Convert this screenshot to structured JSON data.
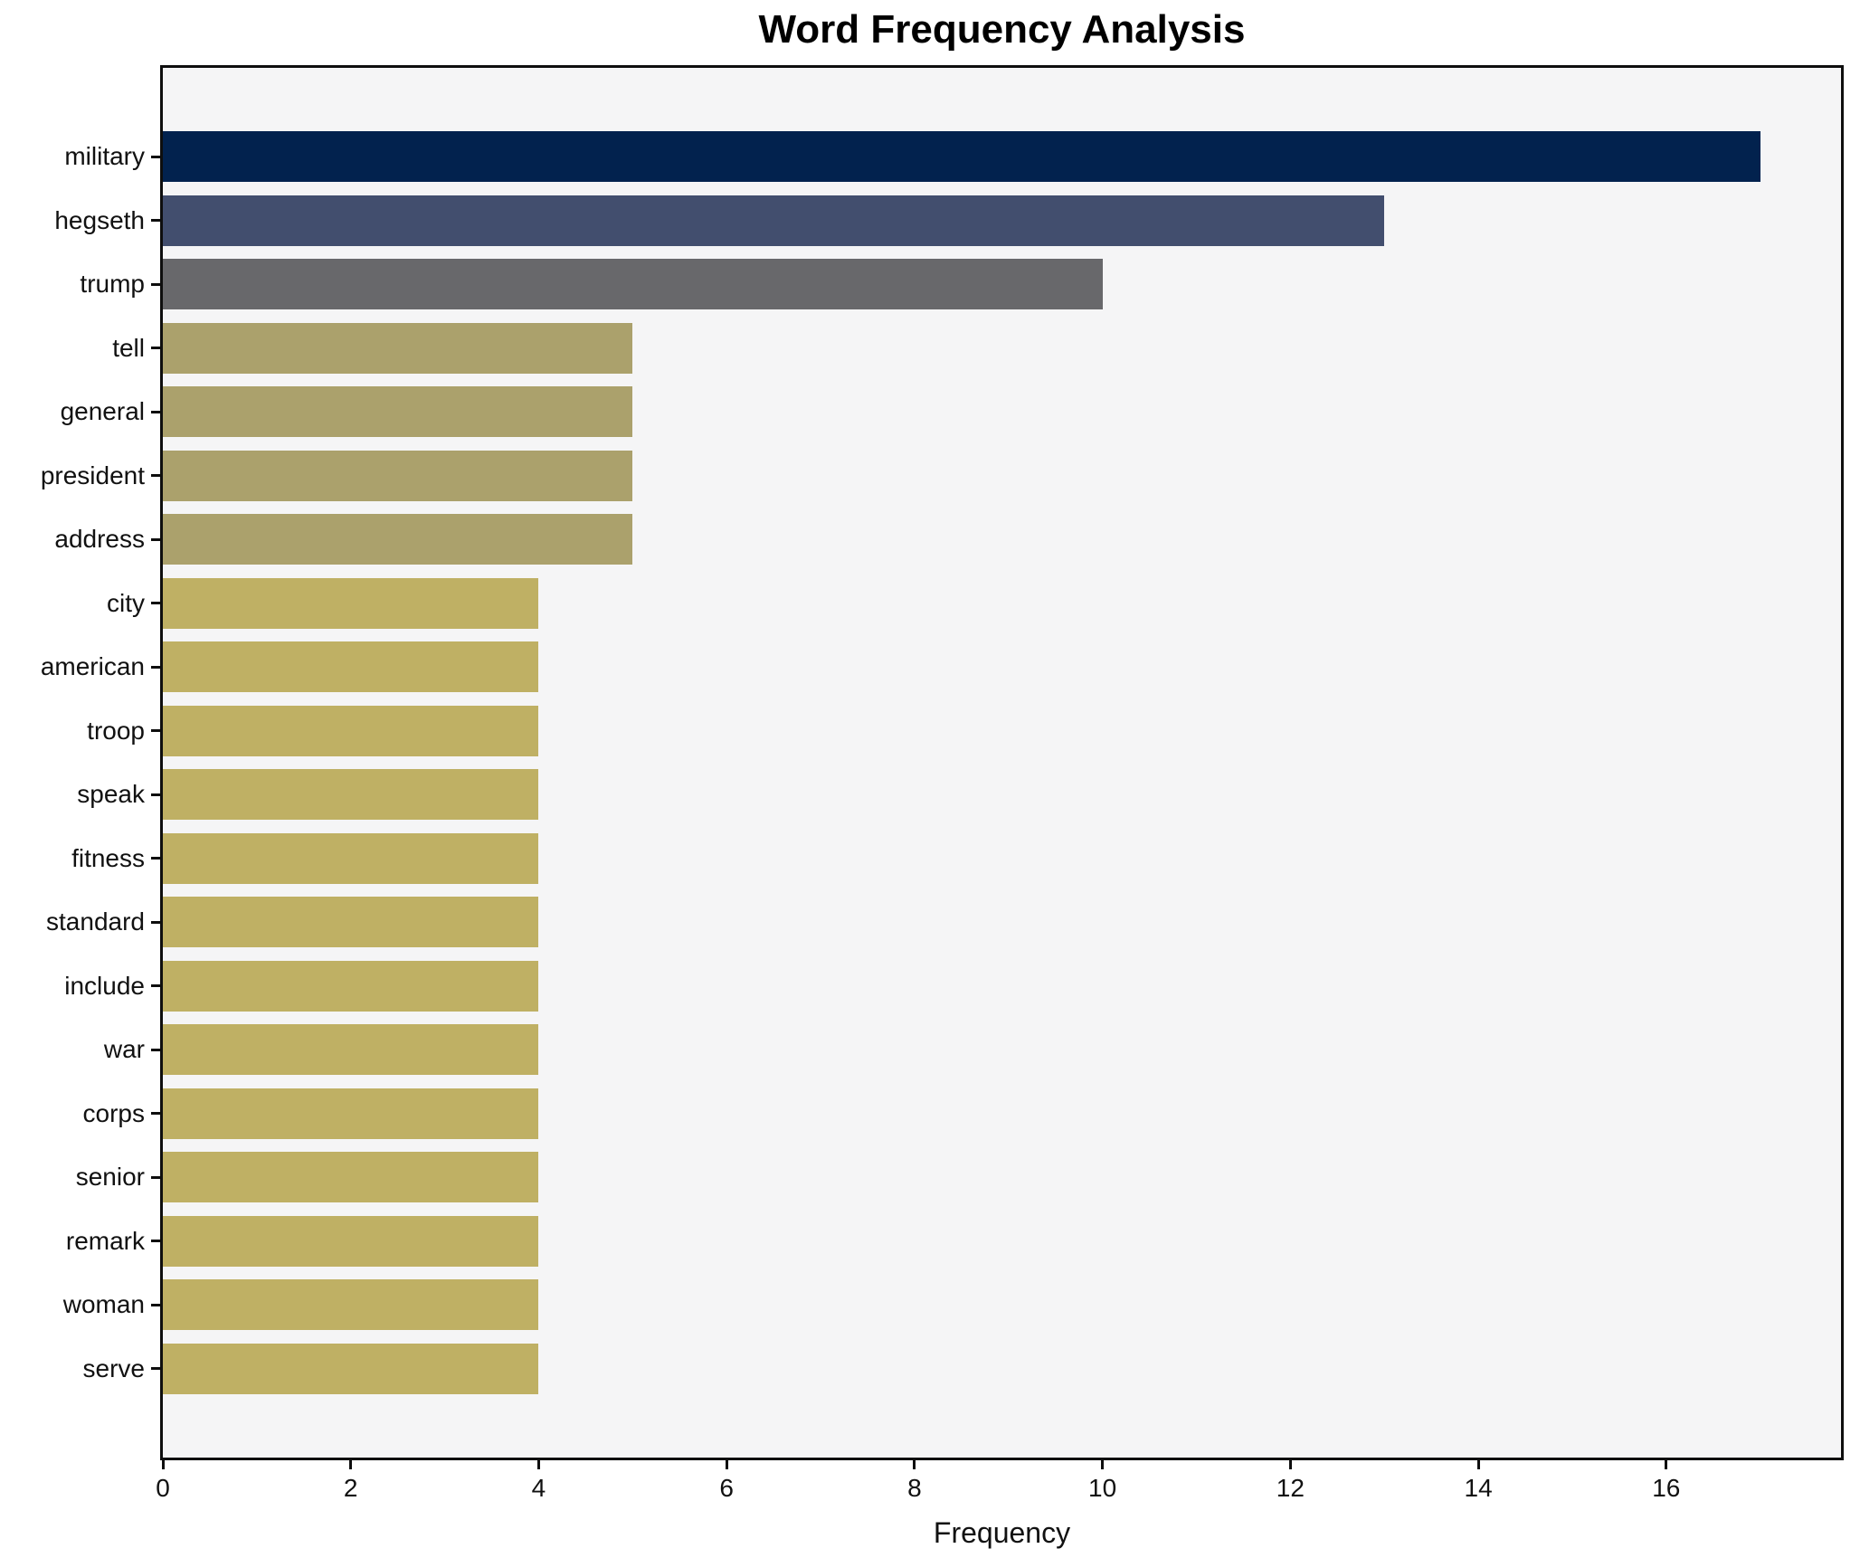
{
  "title": "Word Frequency Analysis",
  "chart_data": {
    "type": "bar",
    "orientation": "horizontal",
    "title": "Word Frequency Analysis",
    "xlabel": "Frequency",
    "ylabel": "",
    "categories": [
      "military",
      "hegseth",
      "trump",
      "tell",
      "general",
      "president",
      "address",
      "city",
      "american",
      "troop",
      "speak",
      "fitness",
      "standard",
      "include",
      "war",
      "corps",
      "senior",
      "remark",
      "woman",
      "serve"
    ],
    "values": [
      17,
      13,
      10,
      5,
      5,
      5,
      5,
      4,
      4,
      4,
      4,
      4,
      4,
      4,
      4,
      4,
      4,
      4,
      4,
      4
    ],
    "bar_colors": [
      "#02224e",
      "#424e6e",
      "#68686b",
      "#aba16c",
      "#aba16c",
      "#aba16c",
      "#aba16c",
      "#bfb064",
      "#bfb064",
      "#bfb064",
      "#bfb064",
      "#bfb064",
      "#bfb064",
      "#bfb064",
      "#bfb064",
      "#bfb064",
      "#bfb064",
      "#bfb064",
      "#bfb064",
      "#bfb064"
    ],
    "xticks": [
      0,
      2,
      4,
      6,
      8,
      10,
      12,
      14,
      16
    ],
    "xlim": [
      0,
      17.86
    ],
    "grid": false,
    "legend": "none",
    "plot_background": "#f5f5f6",
    "figure_background": "#ffffff",
    "spine_color": "#0e0e0e",
    "text_color": "#111111"
  }
}
